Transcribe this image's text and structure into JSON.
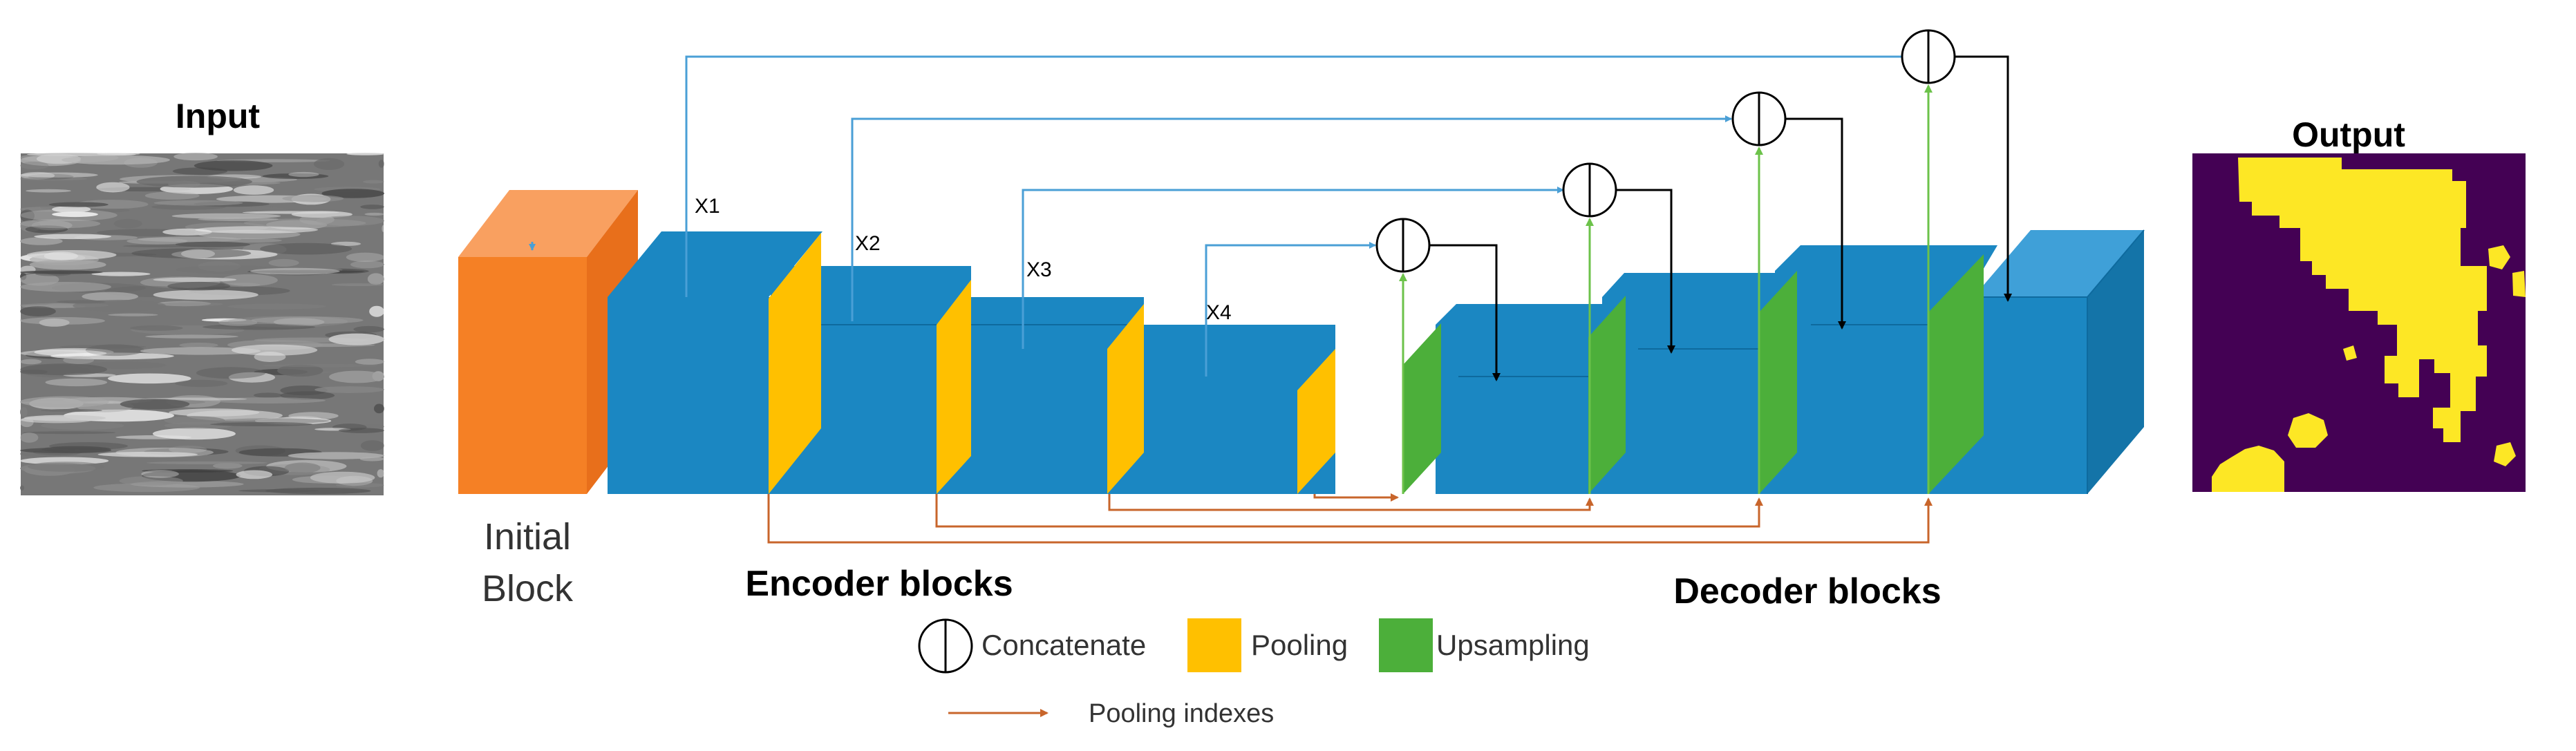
{
  "labels": {
    "input": "Input",
    "output": "Output",
    "initial_block_line1": "Initial",
    "initial_block_line2": "Block",
    "encoder_blocks": "Encoder blocks",
    "decoder_blocks": "Decoder blocks",
    "skips": [
      "X1",
      "X2",
      "X3",
      "X4"
    ]
  },
  "legend": {
    "concatenate": "Concatenate",
    "pooling": "Pooling",
    "upsampling": "Upsampling",
    "pooling_indexes": "Pooling indexes"
  },
  "colors": {
    "initial_block": "#F58025",
    "conv_block": "#1B87C2",
    "pooling": "#FFC000",
    "upsampling": "#4CAF3A",
    "skip_arrow": "#4A9FD6",
    "index_arrow": "#C8652B",
    "upsample_arrow": "#6CC24A",
    "output_bg": "#440154",
    "output_fg": "#FDE725"
  }
}
